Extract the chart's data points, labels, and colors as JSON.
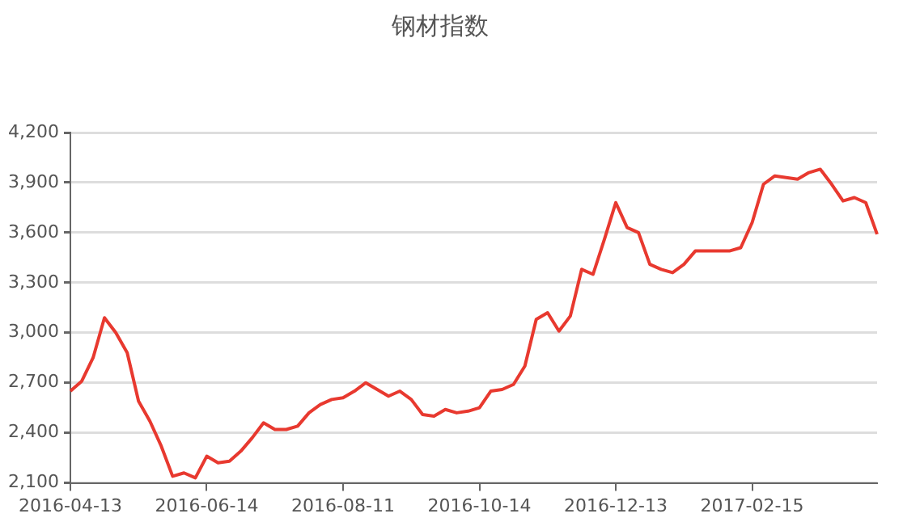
{
  "chart_data": {
    "type": "line",
    "title": "钢材指数",
    "categories": [
      "2016-04-13",
      null,
      null,
      null,
      null,
      null,
      null,
      null,
      null,
      null,
      null,
      null,
      "2016-06-14",
      null,
      null,
      null,
      null,
      null,
      null,
      null,
      null,
      null,
      null,
      null,
      "2016-08-11",
      null,
      null,
      null,
      null,
      null,
      null,
      null,
      null,
      null,
      null,
      null,
      "2016-10-14",
      null,
      null,
      null,
      null,
      null,
      null,
      null,
      null,
      null,
      null,
      null,
      "2016-12-13",
      null,
      null,
      null,
      null,
      null,
      null,
      null,
      null,
      null,
      null,
      null,
      "2017-02-15",
      null,
      null,
      null,
      null,
      null,
      null,
      null,
      null,
      null,
      null,
      null
    ],
    "series": [
      {
        "color": "#e8392f",
        "values": [
          2650,
          2710,
          2850,
          3090,
          3000,
          2880,
          2590,
          2470,
          2320,
          2140,
          2160,
          2130,
          2260,
          2220,
          2230,
          2290,
          2370,
          2460,
          2420,
          2420,
          2440,
          2520,
          2570,
          2600,
          2610,
          2650,
          2700,
          2660,
          2620,
          2650,
          2600,
          2510,
          2500,
          2540,
          2520,
          2530,
          2550,
          2650,
          2660,
          2690,
          2800,
          3080,
          3120,
          3010,
          3100,
          3380,
          3350,
          3560,
          3780,
          3630,
          3600,
          3410,
          3380,
          3360,
          3410,
          3490,
          3490,
          3490,
          3490,
          3510,
          3660,
          3890,
          3940,
          3930,
          3920,
          3960,
          3980,
          3890,
          3790,
          3810,
          3780,
          3590
        ]
      }
    ],
    "ylim": [
      2100,
      4200
    ],
    "yticks": [
      {
        "value": 2100,
        "label": "2,100"
      },
      {
        "value": 2400,
        "label": "2,400"
      },
      {
        "value": 2700,
        "label": "2,700"
      },
      {
        "value": 3000,
        "label": "3,000"
      },
      {
        "value": 3300,
        "label": "3,300"
      },
      {
        "value": 3600,
        "label": "3,600"
      },
      {
        "value": 3900,
        "label": "3,900"
      },
      {
        "value": 4200,
        "label": "4,200"
      }
    ],
    "grid": "y",
    "legend": false,
    "marker": "none",
    "line_style": "solid"
  }
}
